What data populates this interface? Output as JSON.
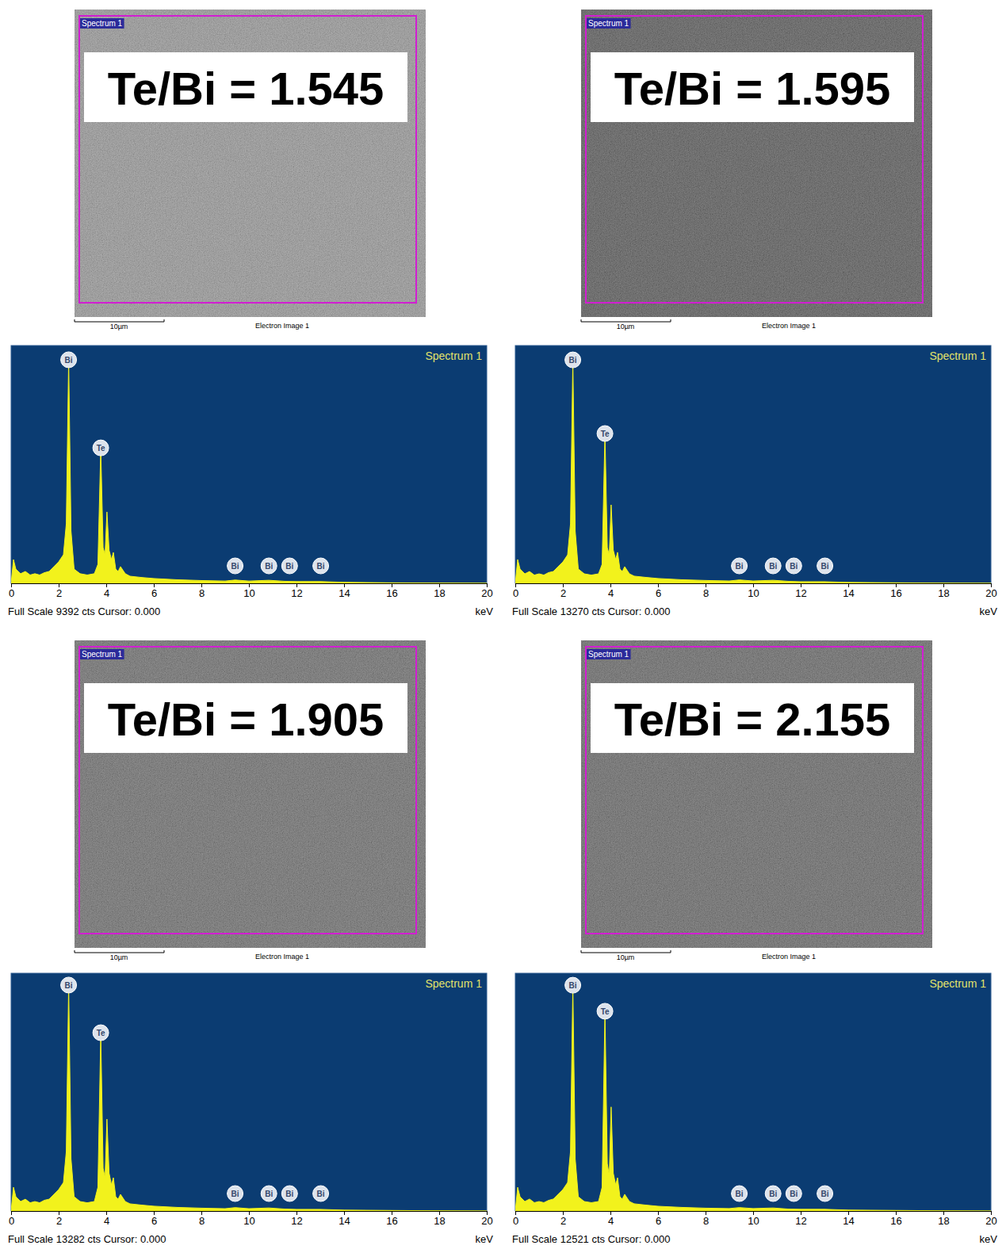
{
  "chart_data": [
    {
      "type": "area",
      "title": "Spectrum 1",
      "xlabel": "keV",
      "annotation": "Full Scale 9392 cts Cursor: 0.000",
      "color": "#f2f21c",
      "x": [
        0,
        0.1,
        0.2,
        0.4,
        0.6,
        0.8,
        1.0,
        1.2,
        1.4,
        1.6,
        1.8,
        2.0,
        2.2,
        2.32,
        2.42,
        2.52,
        2.65,
        2.9,
        3.2,
        3.5,
        3.65,
        3.77,
        3.87,
        3.95,
        4.03,
        4.12,
        4.22,
        4.3,
        4.4,
        4.5,
        4.6,
        4.8,
        5.0,
        5.5,
        6.0,
        7.0,
        8.0,
        9.0,
        9.42,
        10.0,
        10.84,
        11.5,
        12.0,
        13.0,
        14.0,
        16.0,
        18.0,
        20.0
      ],
      "values": [
        0,
        940,
        560,
        380,
        470,
        330,
        380,
        330,
        420,
        470,
        660,
        850,
        1130,
        2350,
        8830,
        2070,
        560,
        380,
        330,
        380,
        750,
        5350,
        1410,
        1130,
        2820,
        1310,
        940,
        1220,
        560,
        470,
        660,
        380,
        280,
        230,
        190,
        140,
        110,
        90,
        130,
        90,
        120,
        80,
        70,
        70,
        40,
        20,
        10,
        0
      ],
      "xlim": [
        0,
        20
      ],
      "xticks": [
        0,
        2,
        4,
        6,
        8,
        10,
        12,
        14,
        16,
        18,
        20
      ],
      "ylim": [
        0,
        9392
      ],
      "tick_labels": "x",
      "peak_labels": [
        {
          "x": 2.42,
          "text": "Bi"
        },
        {
          "x": 3.77,
          "text": "Te"
        },
        {
          "x": 9.42,
          "text": "Bi"
        },
        {
          "x": 10.84,
          "text": "Bi"
        },
        {
          "x": 11.71,
          "text": "Bi"
        },
        {
          "x": 13.02,
          "text": "Bi"
        }
      ]
    },
    {
      "type": "area",
      "title": "Spectrum 1",
      "xlabel": "keV",
      "annotation": "Full Scale 13270 cts Cursor: 0.000",
      "color": "#f2f21c",
      "x": [
        0,
        0.1,
        0.2,
        0.4,
        0.6,
        0.8,
        1.0,
        1.2,
        1.4,
        1.6,
        1.8,
        2.0,
        2.2,
        2.32,
        2.42,
        2.52,
        2.65,
        2.9,
        3.2,
        3.5,
        3.65,
        3.77,
        3.87,
        3.95,
        4.03,
        4.12,
        4.22,
        4.3,
        4.4,
        4.5,
        4.6,
        4.8,
        5.0,
        5.5,
        6.0,
        7.0,
        8.0,
        9.0,
        9.42,
        10.0,
        10.84,
        11.5,
        12.0,
        13.0,
        14.0,
        16.0,
        18.0,
        20.0
      ],
      "values": [
        0,
        1330,
        800,
        530,
        660,
        460,
        530,
        460,
        600,
        660,
        930,
        1190,
        1590,
        3320,
        12470,
        2920,
        800,
        530,
        460,
        530,
        1060,
        8360,
        1990,
        1590,
        4380,
        1860,
        1330,
        1730,
        800,
        660,
        930,
        530,
        400,
        330,
        270,
        200,
        160,
        130,
        190,
        130,
        170,
        110,
        90,
        90,
        50,
        30,
        10,
        0
      ],
      "xlim": [
        0,
        20
      ],
      "xticks": [
        0,
        2,
        4,
        6,
        8,
        10,
        12,
        14,
        16,
        18,
        20
      ],
      "ylim": [
        0,
        13270
      ],
      "tick_labels": "x",
      "peak_labels": [
        {
          "x": 2.42,
          "text": "Bi"
        },
        {
          "x": 3.77,
          "text": "Te"
        },
        {
          "x": 9.42,
          "text": "Bi"
        },
        {
          "x": 10.84,
          "text": "Bi"
        },
        {
          "x": 11.71,
          "text": "Bi"
        },
        {
          "x": 13.02,
          "text": "Bi"
        }
      ]
    },
    {
      "type": "area",
      "title": "Spectrum 1",
      "xlabel": "keV",
      "annotation": "Full Scale 13282 cts Cursor: 0.000",
      "color": "#f2f21c",
      "x": [
        0,
        0.1,
        0.2,
        0.4,
        0.6,
        0.8,
        1.0,
        1.2,
        1.4,
        1.6,
        1.8,
        2.0,
        2.2,
        2.32,
        2.42,
        2.52,
        2.65,
        2.9,
        3.2,
        3.5,
        3.65,
        3.77,
        3.87,
        3.95,
        4.03,
        4.12,
        4.22,
        4.3,
        4.4,
        4.5,
        4.6,
        4.8,
        5.0,
        5.5,
        6.0,
        7.0,
        8.0,
        9.0,
        9.42,
        10.0,
        10.84,
        11.5,
        12.0,
        13.0,
        14.0,
        16.0,
        18.0,
        20.0
      ],
      "values": [
        0,
        1330,
        800,
        530,
        660,
        460,
        530,
        460,
        600,
        660,
        930,
        1200,
        1590,
        3320,
        12620,
        2920,
        800,
        530,
        460,
        530,
        1330,
        9960,
        2390,
        1860,
        5130,
        2120,
        1460,
        1860,
        800,
        660,
        930,
        530,
        400,
        330,
        270,
        200,
        160,
        130,
        190,
        130,
        170,
        110,
        90,
        90,
        50,
        30,
        10,
        0
      ],
      "xlim": [
        0,
        20
      ],
      "xticks": [
        0,
        2,
        4,
        6,
        8,
        10,
        12,
        14,
        16,
        18,
        20
      ],
      "ylim": [
        0,
        13282
      ],
      "tick_labels": "x",
      "peak_labels": [
        {
          "x": 2.42,
          "text": "Bi"
        },
        {
          "x": 3.77,
          "text": "Te"
        },
        {
          "x": 9.42,
          "text": "Bi"
        },
        {
          "x": 10.84,
          "text": "Bi"
        },
        {
          "x": 11.71,
          "text": "Bi"
        },
        {
          "x": 13.02,
          "text": "Bi"
        }
      ]
    },
    {
      "type": "area",
      "title": "Spectrum 1",
      "xlabel": "keV",
      "annotation": "Full Scale 12521 cts Cursor: 0.000",
      "color": "#f2f21c",
      "x": [
        0,
        0.1,
        0.2,
        0.4,
        0.6,
        0.8,
        1.0,
        1.2,
        1.4,
        1.6,
        1.8,
        2.0,
        2.2,
        2.32,
        2.42,
        2.52,
        2.65,
        2.9,
        3.2,
        3.5,
        3.65,
        3.77,
        3.87,
        3.95,
        4.03,
        4.12,
        4.22,
        4.3,
        4.4,
        4.5,
        4.6,
        4.8,
        5.0,
        5.5,
        6.0,
        7.0,
        8.0,
        9.0,
        9.42,
        10.0,
        10.84,
        11.5,
        12.0,
        13.0,
        14.0,
        16.0,
        18.0,
        20.0
      ],
      "values": [
        0,
        1250,
        750,
        500,
        630,
        440,
        500,
        440,
        560,
        630,
        880,
        1130,
        1500,
        3130,
        11890,
        2750,
        750,
        500,
        440,
        500,
        1250,
        10520,
        2500,
        1880,
        5480,
        2000,
        1380,
        1750,
        750,
        630,
        880,
        500,
        380,
        310,
        250,
        190,
        150,
        130,
        180,
        130,
        160,
        100,
        90,
        90,
        50,
        30,
        10,
        0
      ],
      "xlim": [
        0,
        20
      ],
      "xticks": [
        0,
        2,
        4,
        6,
        8,
        10,
        12,
        14,
        16,
        18,
        20
      ],
      "ylim": [
        0,
        12521
      ],
      "tick_labels": "x",
      "peak_labels": [
        {
          "x": 2.42,
          "text": "Bi"
        },
        {
          "x": 3.77,
          "text": "Te"
        },
        {
          "x": 9.42,
          "text": "Bi"
        },
        {
          "x": 10.84,
          "text": "Bi"
        },
        {
          "x": 11.71,
          "text": "Bi"
        },
        {
          "x": 13.02,
          "text": "Bi"
        }
      ]
    }
  ],
  "images": [
    {
      "ratio_label": "Te/Bi = 1.545",
      "region_label": "Spectrum 1",
      "scale_bar": "10µm",
      "caption": "Electron Image 1"
    },
    {
      "ratio_label": "Te/Bi = 1.595",
      "region_label": "Spectrum 1",
      "scale_bar": "10µm",
      "caption": "Electron Image 1"
    },
    {
      "ratio_label": "Te/Bi = 1.905",
      "region_label": "Spectrum 1",
      "scale_bar": "10µm",
      "caption": "Electron Image 1"
    },
    {
      "ratio_label": "Te/Bi = 2.155",
      "region_label": "Spectrum 1",
      "scale_bar": "10µm",
      "caption": "Electron Image 1"
    }
  ]
}
